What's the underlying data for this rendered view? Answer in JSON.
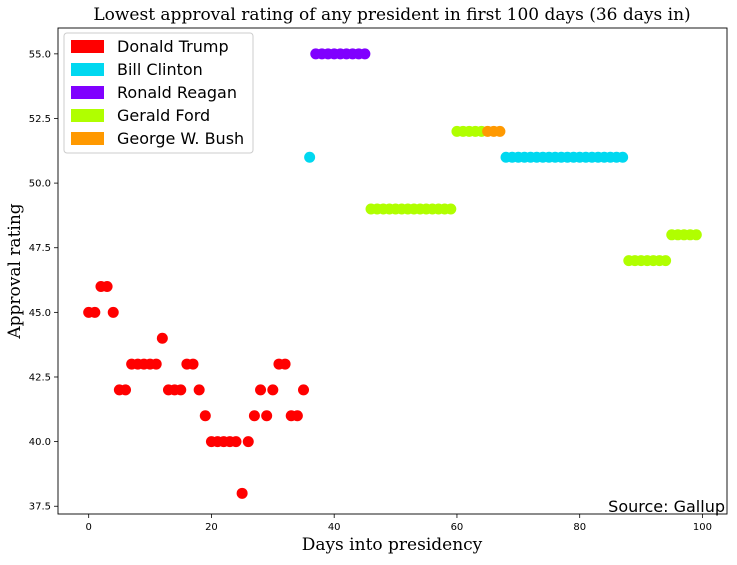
{
  "chart_data": {
    "type": "scatter",
    "title": "Lowest approval rating of any president in first 100 days (36 days in)",
    "xlabel": "Days into presidency",
    "ylabel": "Approval rating",
    "xlim": [
      -5,
      104
    ],
    "ylim": [
      37.2,
      56.0
    ],
    "x_ticks": [
      0,
      20,
      40,
      60,
      80,
      100
    ],
    "x_tick_labels": [
      "0",
      "20",
      "40",
      "60",
      "80",
      "100"
    ],
    "y_ticks": [
      37.5,
      40.0,
      42.5,
      45.0,
      47.5,
      50.0,
      52.5,
      55.0
    ],
    "y_tick_labels": [
      "37.5",
      "40.0",
      "42.5",
      "45.0",
      "47.5",
      "50.0",
      "52.5",
      "55.0"
    ],
    "grid": false,
    "legend_position": "top-left",
    "annotation": "Source: Gallup",
    "series": [
      {
        "name": "Donald Trump",
        "color": "#ff0000",
        "points": [
          [
            0,
            45
          ],
          [
            1,
            45
          ],
          [
            2,
            46
          ],
          [
            3,
            46
          ],
          [
            4,
            45
          ],
          [
            5,
            42
          ],
          [
            6,
            42
          ],
          [
            7,
            43
          ],
          [
            8,
            43
          ],
          [
            9,
            43
          ],
          [
            10,
            43
          ],
          [
            11,
            43
          ],
          [
            12,
            44
          ],
          [
            13,
            42
          ],
          [
            14,
            42
          ],
          [
            15,
            42
          ],
          [
            16,
            43
          ],
          [
            17,
            43
          ],
          [
            18,
            42
          ],
          [
            19,
            41
          ],
          [
            20,
            40
          ],
          [
            21,
            40
          ],
          [
            22,
            40
          ],
          [
            23,
            40
          ],
          [
            24,
            40
          ],
          [
            25,
            38
          ],
          [
            26,
            40
          ],
          [
            27,
            41
          ],
          [
            28,
            42
          ],
          [
            29,
            41
          ],
          [
            30,
            42
          ],
          [
            31,
            43
          ],
          [
            32,
            43
          ],
          [
            33,
            41
          ],
          [
            34,
            41
          ],
          [
            35,
            42
          ]
        ]
      },
      {
        "name": "Bill Clinton",
        "color": "#00d8f0",
        "points": [
          [
            36,
            51
          ],
          [
            68,
            51
          ],
          [
            69,
            51
          ],
          [
            70,
            51
          ],
          [
            71,
            51
          ],
          [
            72,
            51
          ],
          [
            73,
            51
          ],
          [
            74,
            51
          ],
          [
            75,
            51
          ],
          [
            76,
            51
          ],
          [
            77,
            51
          ],
          [
            78,
            51
          ],
          [
            79,
            51
          ],
          [
            80,
            51
          ],
          [
            81,
            51
          ],
          [
            82,
            51
          ],
          [
            83,
            51
          ],
          [
            84,
            51
          ],
          [
            85,
            51
          ],
          [
            86,
            51
          ],
          [
            87,
            51
          ]
        ]
      },
      {
        "name": "Ronald Reagan",
        "color": "#8000ff",
        "points": [
          [
            37,
            55
          ],
          [
            38,
            55
          ],
          [
            39,
            55
          ],
          [
            40,
            55
          ],
          [
            41,
            55
          ],
          [
            42,
            55
          ],
          [
            43,
            55
          ],
          [
            44,
            55
          ],
          [
            45,
            55
          ]
        ]
      },
      {
        "name": "Gerald Ford",
        "color": "#b0ff00",
        "points": [
          [
            46,
            49
          ],
          [
            47,
            49
          ],
          [
            48,
            49
          ],
          [
            49,
            49
          ],
          [
            50,
            49
          ],
          [
            51,
            49
          ],
          [
            52,
            49
          ],
          [
            53,
            49
          ],
          [
            54,
            49
          ],
          [
            55,
            49
          ],
          [
            56,
            49
          ],
          [
            57,
            49
          ],
          [
            58,
            49
          ],
          [
            59,
            49
          ],
          [
            60,
            52
          ],
          [
            61,
            52
          ],
          [
            62,
            52
          ],
          [
            63,
            52
          ],
          [
            64,
            52
          ],
          [
            88,
            47
          ],
          [
            89,
            47
          ],
          [
            90,
            47
          ],
          [
            91,
            47
          ],
          [
            92,
            47
          ],
          [
            93,
            47
          ],
          [
            94,
            47
          ],
          [
            95,
            48
          ],
          [
            96,
            48
          ],
          [
            97,
            48
          ],
          [
            98,
            48
          ],
          [
            99,
            48
          ]
        ]
      },
      {
        "name": "George W. Bush",
        "color": "#ff9900",
        "points": [
          [
            65,
            52
          ],
          [
            66,
            52
          ],
          [
            67,
            52
          ]
        ]
      }
    ]
  }
}
